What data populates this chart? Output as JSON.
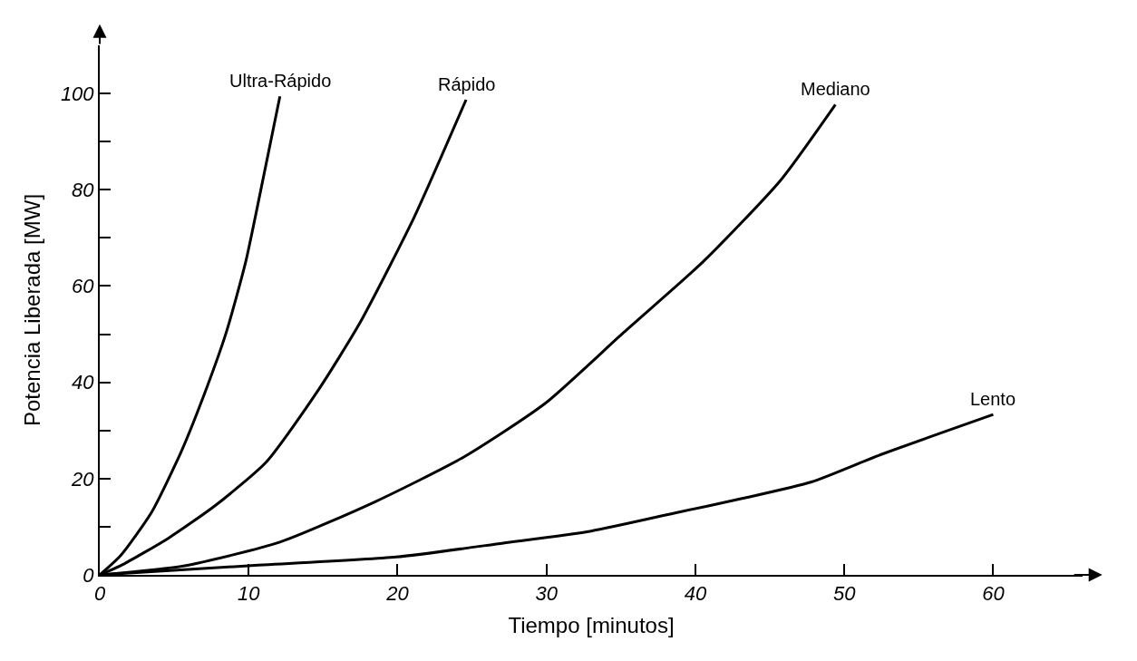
{
  "chart_data": {
    "type": "line",
    "xlabel": "Tiempo [minutos]",
    "ylabel": "Potencia Liberada [MW]",
    "xlim": [
      0,
      66
    ],
    "ylim": [
      0,
      110
    ],
    "xticks": [
      0,
      10,
      20,
      30,
      40,
      50,
      60
    ],
    "yticks": [
      0,
      {
        "value": 10,
        "label": null
      },
      20,
      {
        "value": 30,
        "label": null
      },
      40,
      {
        "value": 50,
        "label": null
      },
      60,
      {
        "value": 70,
        "label": null
      },
      80,
      {
        "value": 90,
        "label": null
      },
      100
    ],
    "legend": false,
    "marker": "none",
    "line_style": "solid",
    "series": [
      {
        "name": "Ultra-Rápido",
        "color": "#000000",
        "x": [
          0,
          1.4,
          3.5,
          5.5,
          7.2,
          8.5,
          9.8,
          10.8,
          12.1
        ],
        "values": [
          0,
          4,
          13.1,
          25.8,
          39,
          50.4,
          65,
          79.7,
          99.4
        ]
      },
      {
        "name": "Rápido",
        "color": "#000000",
        "x": [
          0,
          1.4,
          4.6,
          7.8,
          11.2,
          14.7,
          17.5,
          21.1,
          24.6
        ],
        "values": [
          0,
          1.9,
          7.6,
          14.5,
          23.5,
          38.5,
          52.5,
          74.2,
          98.7
        ]
      },
      {
        "name": "Mediano",
        "color": "#000000",
        "x": [
          0,
          5.7,
          12.1,
          18.5,
          24.4,
          29.9,
          35.2,
          40.5,
          45.7,
          49.4
        ],
        "values": [
          0,
          1.9,
          6.8,
          15.2,
          24.4,
          35.6,
          50.4,
          65,
          81.9,
          97.7
        ]
      },
      {
        "name": "Lento",
        "color": "#000000",
        "x": [
          0,
          10,
          19.9,
          27.1,
          33,
          38.7,
          43.2,
          47.8,
          52.3,
          60
        ],
        "values": [
          0,
          1.9,
          3.7,
          6.6,
          9.1,
          12.9,
          15.9,
          19.3,
          24.8,
          33.3
        ]
      }
    ]
  }
}
